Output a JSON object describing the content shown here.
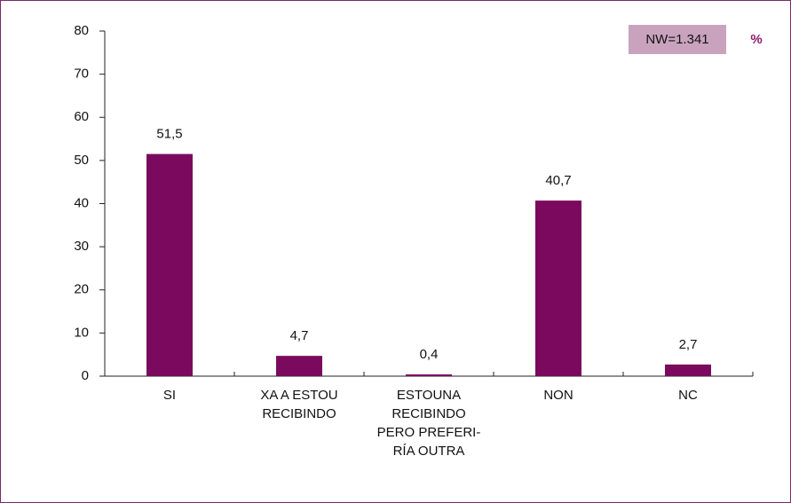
{
  "chart_data": {
    "type": "bar",
    "categories": [
      "SI",
      "XA A ESTOU\nRECIBINDO",
      "ESTOUNA\nRECIBINDO\nPERO PREFERI-\nRÍA OUTRA",
      "NON",
      "NC"
    ],
    "values": [
      51.5,
      4.7,
      0.4,
      40.7,
      2.7
    ],
    "value_labels": [
      "51,5",
      "4,7",
      "0,4",
      "40,7",
      "2,7"
    ],
    "color": "#7b0a5e",
    "ylim": [
      0,
      80
    ],
    "yticks": [
      0,
      10,
      20,
      30,
      40,
      50,
      60,
      70,
      80
    ],
    "annotations": [
      "NW=1.341",
      "%"
    ]
  }
}
